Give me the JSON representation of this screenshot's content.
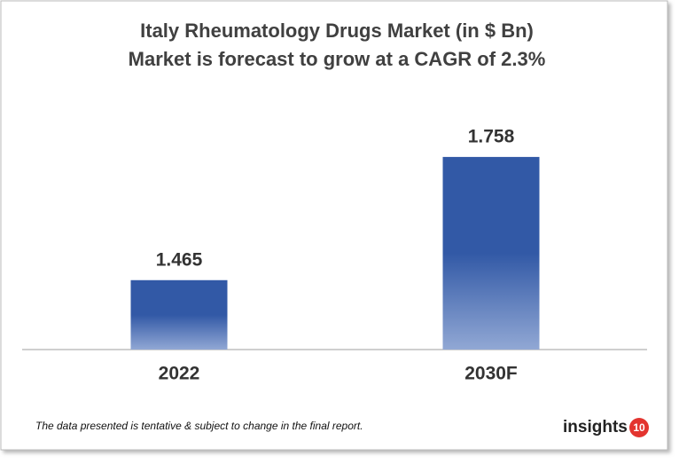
{
  "chart_data": {
    "type": "bar",
    "title": "Italy Rheumatology  Drugs Market (in $ Bn)",
    "subtitle": "Market is forecast to grow at a CAGR of 2.3%",
    "categories": [
      "2022",
      "2030F"
    ],
    "values": [
      1.465,
      1.758
    ],
    "color": "#3259a6",
    "ylim": [
      1.3,
      1.8
    ],
    "footnote": "The data presented is tentative & subject to change in the final report."
  },
  "brand": {
    "name": "insights",
    "number": "10"
  }
}
